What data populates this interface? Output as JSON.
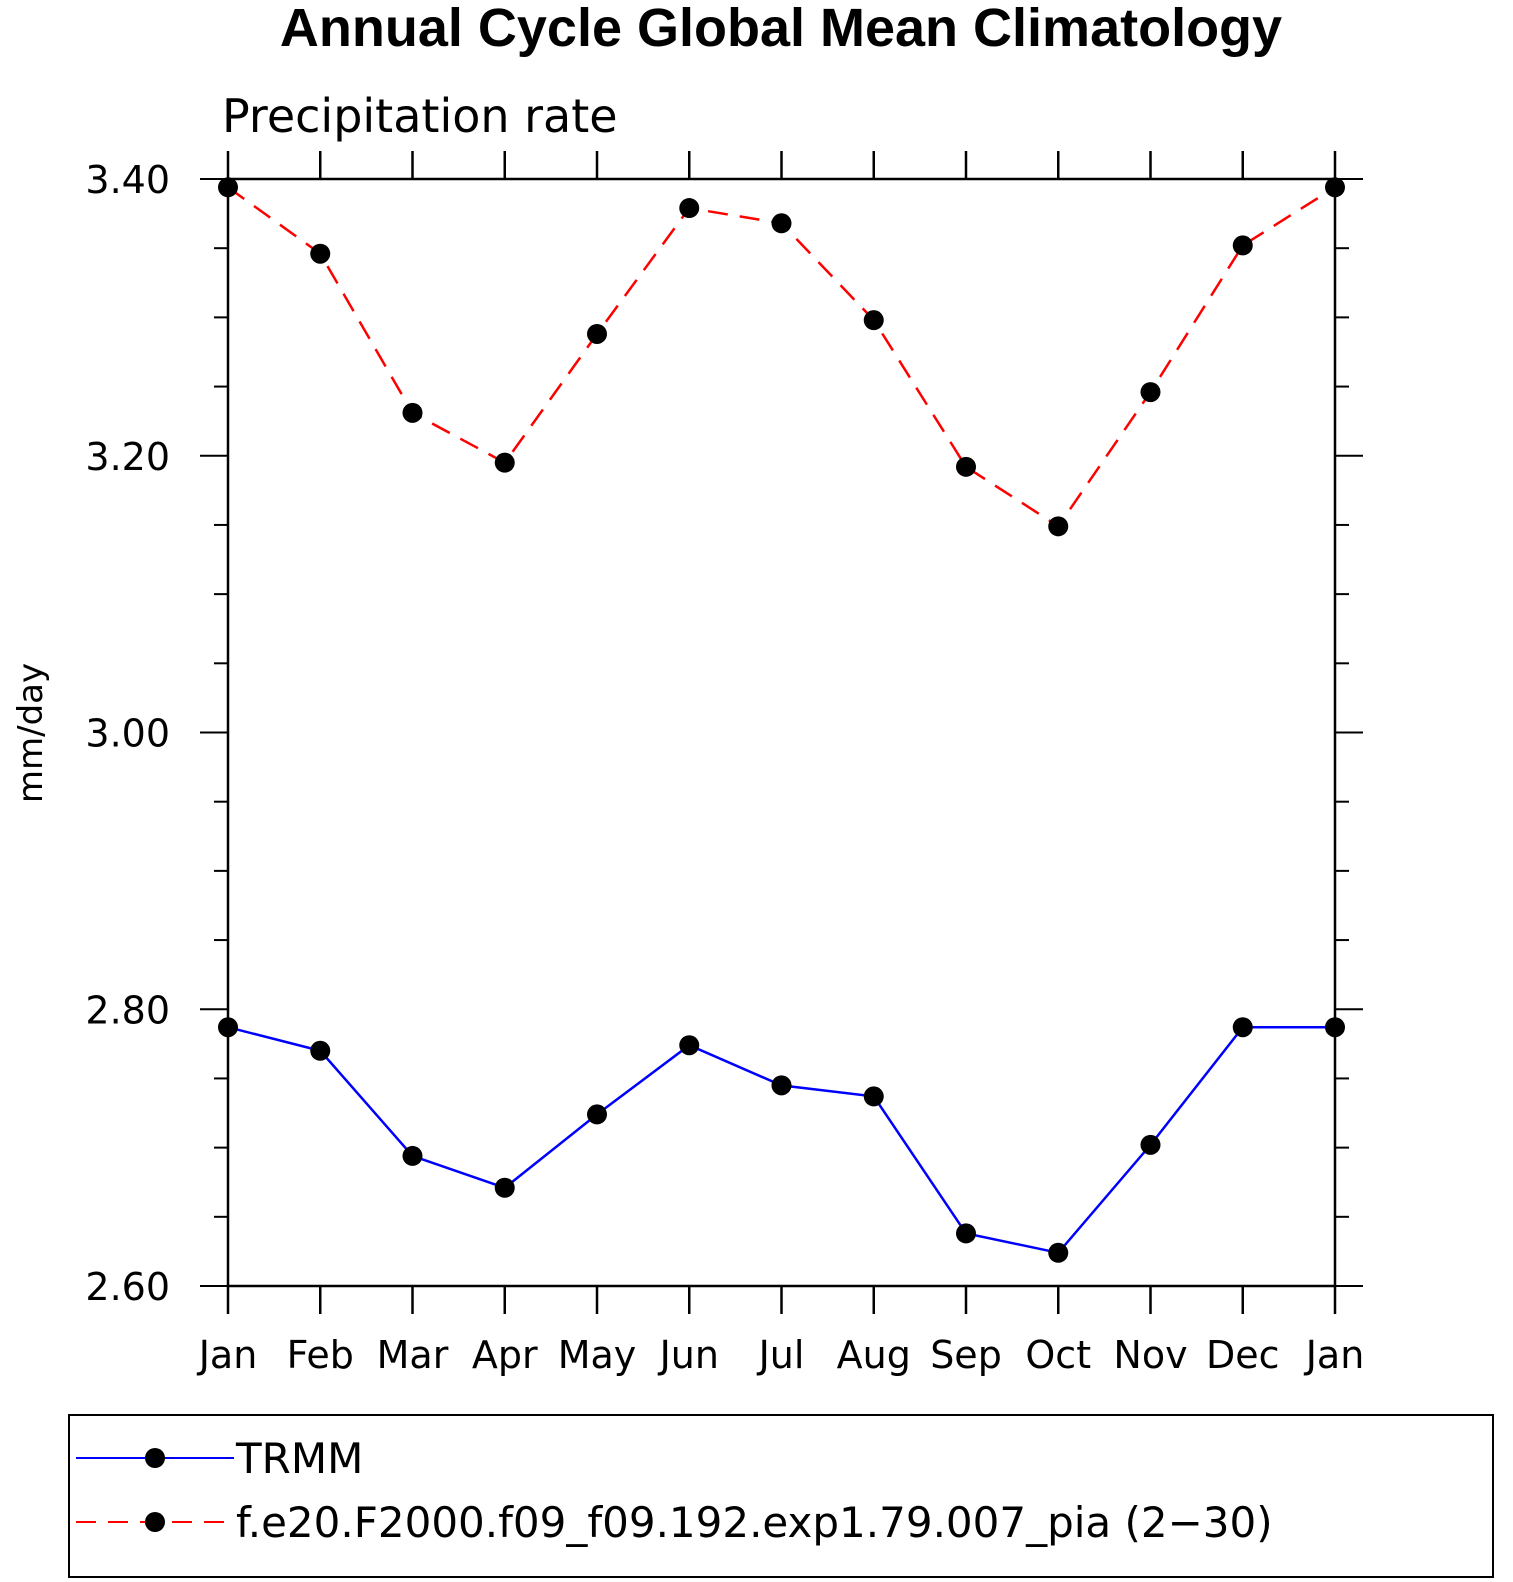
{
  "chart_data": {
    "type": "line",
    "title": "Annual Cycle Global Mean Climatology",
    "subtitle": "Precipitation rate",
    "ylabel": "mm/day",
    "xlabel": "",
    "categories": [
      "Jan",
      "Feb",
      "Mar",
      "Apr",
      "May",
      "Jun",
      "Jul",
      "Aug",
      "Sep",
      "Oct",
      "Nov",
      "Dec",
      "Jan"
    ],
    "ylim": [
      2.6,
      3.4
    ],
    "yticks": [
      2.6,
      2.8,
      3.0,
      3.2,
      3.4
    ],
    "ytick_labels": [
      "2.60",
      "2.80",
      "3.00",
      "3.20",
      "3.40"
    ],
    "grid": false,
    "legend_position": "bottom",
    "series": [
      {
        "name": "TRMM",
        "color": "#0000ff",
        "dash": "solid",
        "marker": "filled-circle",
        "values": [
          2.787,
          2.77,
          2.694,
          2.671,
          2.724,
          2.774,
          2.745,
          2.737,
          2.638,
          2.624,
          2.702,
          2.787,
          2.787
        ]
      },
      {
        "name": "f.e20.F2000.f09_f09.192.exp1.79.007_pia (2−30)",
        "color": "#ff0000",
        "dash": "dashed",
        "marker": "filled-circle",
        "values": [
          3.394,
          3.346,
          3.231,
          3.195,
          3.288,
          3.379,
          3.368,
          3.298,
          3.192,
          3.149,
          3.246,
          3.352,
          3.394
        ]
      }
    ]
  }
}
